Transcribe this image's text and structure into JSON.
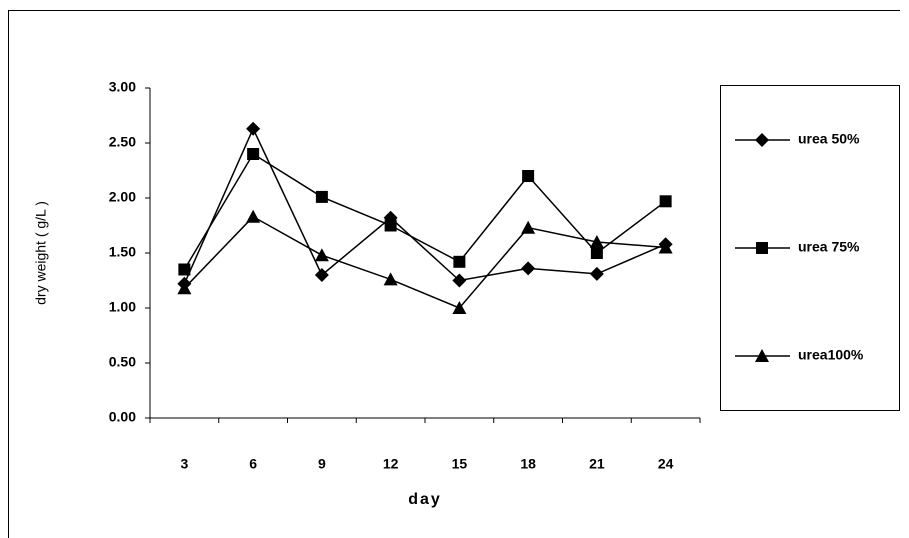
{
  "chart_data": {
    "type": "line",
    "x_label": "day",
    "y_label": "dry weight ( g/L )",
    "categories": [
      "3",
      "6",
      "9",
      "12",
      "15",
      "18",
      "21",
      "24"
    ],
    "series": [
      {
        "name": "urea 50%",
        "color": "#000000",
        "marker": "diamond",
        "values": [
          1.22,
          2.63,
          1.3,
          1.82,
          1.25,
          1.36,
          1.31,
          1.58
        ]
      },
      {
        "name": "urea 75%",
        "color": "#000000",
        "marker": "square",
        "values": [
          1.35,
          2.4,
          2.01,
          1.75,
          1.42,
          2.2,
          1.5,
          1.97
        ]
      },
      {
        "name": "urea100%",
        "color": "#000000",
        "marker": "triangle",
        "values": [
          1.18,
          1.83,
          1.48,
          1.26,
          1.0,
          1.73,
          1.6,
          1.55
        ]
      }
    ],
    "ylim": [
      0,
      3
    ],
    "yticks": [
      {
        "value": 0,
        "label": "0.00"
      },
      {
        "value": 0.5,
        "label": "0.50"
      },
      {
        "value": 1,
        "label": "1.00"
      },
      {
        "value": 1.5,
        "label": "1.50"
      },
      {
        "value": 2,
        "label": "2.00"
      },
      {
        "value": 2.5,
        "label": "2.50"
      },
      {
        "value": 3,
        "label": "3.00"
      }
    ],
    "legend": "right"
  }
}
